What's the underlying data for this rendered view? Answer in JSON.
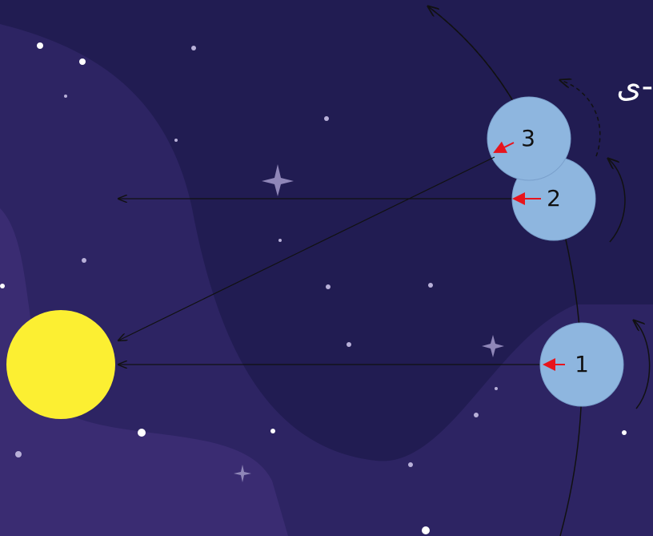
{
  "caption": "ی-",
  "earths": [
    {
      "label": "1"
    },
    {
      "label": "2"
    },
    {
      "label": "3"
    }
  ]
}
